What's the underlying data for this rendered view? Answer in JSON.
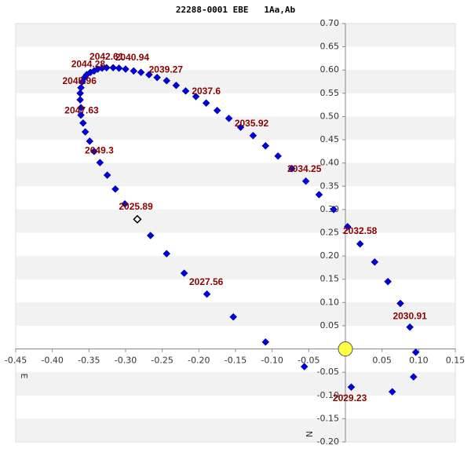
{
  "chart_data": {
    "type": "scatter",
    "title": "22288-0001 EBE   1Aa,Ab",
    "x_direction_label": "E",
    "y_direction_label": "N",
    "xlim": [
      -0.45,
      0.15
    ],
    "ylim": [
      -0.2,
      0.7
    ],
    "xticks": [
      {
        "value": -0.45,
        "label": "-0.45"
      },
      {
        "value": -0.4,
        "label": "-0.40"
      },
      -0.35,
      {
        "value": -0.3,
        "label": "-0.30"
      },
      -0.25,
      {
        "value": -0.2,
        "label": "-0.20"
      },
      -0.15,
      {
        "value": -0.1,
        "label": "-0.10"
      },
      -0.05,
      0.05,
      {
        "value": 0.1,
        "label": "0.10"
      },
      0.15
    ],
    "yticks": [
      {
        "value": 0.7,
        "label": "0.70"
      },
      0.65,
      {
        "value": 0.6,
        "label": "0.60"
      },
      0.55,
      {
        "value": 0.5,
        "label": "0.50"
      },
      0.45,
      {
        "value": 0.4,
        "label": "0.40"
      },
      0.35,
      {
        "value": 0.3,
        "label": "0.30"
      },
      0.25,
      {
        "value": 0.2,
        "label": "0.20"
      },
      0.15,
      {
        "value": 0.1,
        "label": "0.10"
      },
      0.05,
      -0.05,
      {
        "value": -0.1,
        "label": "-0.10"
      },
      -0.15,
      {
        "value": -0.2,
        "label": "-0.20"
      }
    ],
    "grid_bands": true,
    "series": [
      {
        "color": "#0000dd",
        "marker": "diamond",
        "x": [
          -0.301,
          -0.314,
          -0.325,
          -0.335,
          -0.343,
          -0.349,
          -0.355,
          -0.358,
          -0.361,
          -0.361,
          -0.362,
          -0.362,
          -0.361,
          -0.359,
          -0.356,
          -0.353,
          -0.348,
          -0.343,
          -0.338,
          -0.332,
          -0.326,
          -0.317,
          -0.309,
          -0.3,
          -0.289,
          -0.279,
          -0.268,
          -0.257,
          -0.244,
          -0.231,
          -0.218,
          -0.204,
          -0.19,
          -0.175,
          -0.159,
          -0.143,
          -0.126,
          -0.109,
          -0.092,
          -0.073,
          -0.054,
          -0.036,
          -0.016,
          0.003,
          0.02,
          0.04,
          0.058,
          0.075,
          0.088,
          0.096,
          0.093,
          0.064,
          0.008,
          -0.056,
          -0.109,
          -0.153,
          -0.189,
          -0.22,
          -0.244,
          -0.266
        ],
        "values": [
          0.312,
          0.344,
          0.374,
          0.401,
          0.425,
          0.447,
          0.467,
          0.486,
          0.503,
          0.519,
          0.536,
          0.55,
          0.562,
          0.575,
          0.584,
          0.59,
          0.595,
          0.598,
          0.602,
          0.604,
          0.605,
          0.605,
          0.604,
          0.602,
          0.598,
          0.595,
          0.59,
          0.584,
          0.577,
          0.567,
          0.555,
          0.543,
          0.529,
          0.513,
          0.496,
          0.477,
          0.459,
          0.437,
          0.415,
          0.388,
          0.361,
          0.332,
          0.3,
          0.263,
          0.226,
          0.187,
          0.145,
          0.098,
          0.047,
          -0.007,
          -0.06,
          -0.092,
          -0.082,
          -0.038,
          0.015,
          0.069,
          0.118,
          0.163,
          0.205,
          0.244
        ]
      },
      {
        "color": "#000000",
        "marker": "hollow-diamond",
        "x": [
          -0.284
        ],
        "values": [
          0.279
        ]
      },
      {
        "color": "#ffff44",
        "marker": "circle",
        "x": [
          0
        ],
        "values": [
          0
        ]
      }
    ],
    "annotations": [
      {
        "text": "2042.61",
        "x": -0.326,
        "y": 0.628
      },
      {
        "text": "2040.94",
        "x": -0.291,
        "y": 0.626
      },
      {
        "text": "2044.28",
        "x": -0.351,
        "y": 0.612
      },
      {
        "text": "2039.27",
        "x": -0.245,
        "y": 0.6
      },
      {
        "text": "2045.96",
        "x": -0.363,
        "y": 0.575
      },
      {
        "text": "2037.6",
        "x": -0.19,
        "y": 0.553
      },
      {
        "text": "2047.63",
        "x": -0.36,
        "y": 0.512
      },
      {
        "text": "2035.92",
        "x": -0.128,
        "y": 0.484
      },
      {
        "text": "2049.3",
        "x": -0.336,
        "y": 0.426
      },
      {
        "text": "2034.25",
        "x": -0.056,
        "y": 0.386
      },
      {
        "text": "2025.89",
        "x": -0.286,
        "y": 0.305
      },
      {
        "text": "2032.58",
        "x": 0.02,
        "y": 0.253
      },
      {
        "text": "2027.56",
        "x": -0.19,
        "y": 0.143
      },
      {
        "text": "2030.91",
        "x": 0.088,
        "y": 0.07
      },
      {
        "text": "2029.23",
        "x": 0.006,
        "y": -0.107
      }
    ]
  }
}
